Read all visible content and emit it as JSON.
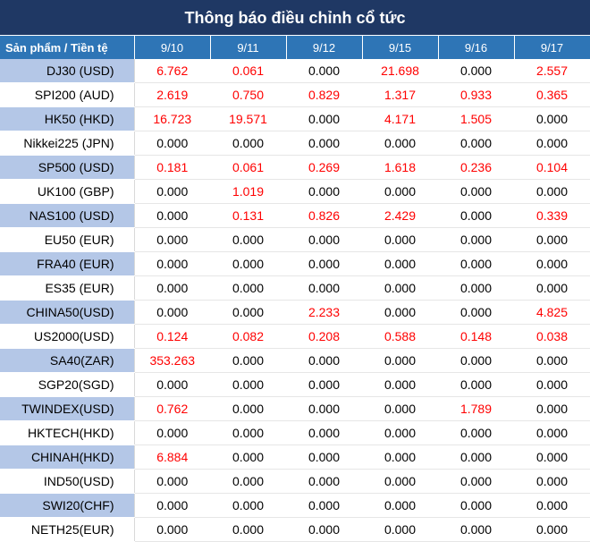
{
  "title": "Thông báo điều chỉnh cổ tức",
  "header": {
    "product_label": "Sản phẩm / Tiền tệ",
    "dates": [
      "9/10",
      "9/11",
      "9/12",
      "9/15",
      "9/16",
      "9/17"
    ]
  },
  "colors": {
    "title_bg": "#1f3864",
    "header_bg": "#2e75b6",
    "stripe": "#b4c7e7",
    "positive": "#ff0000"
  },
  "rows": [
    {
      "product": "DJ30 (USD)",
      "values": [
        "6.762",
        "0.061",
        "0.000",
        "21.698",
        "0.000",
        "2.557"
      ]
    },
    {
      "product": "SPI200 (AUD)",
      "values": [
        "2.619",
        "0.750",
        "0.829",
        "1.317",
        "0.933",
        "0.365"
      ]
    },
    {
      "product": "HK50 (HKD)",
      "values": [
        "16.723",
        "19.571",
        "0.000",
        "4.171",
        "1.505",
        "0.000"
      ]
    },
    {
      "product": "Nikkei225 (JPN)",
      "values": [
        "0.000",
        "0.000",
        "0.000",
        "0.000",
        "0.000",
        "0.000"
      ]
    },
    {
      "product": "SP500 (USD)",
      "values": [
        "0.181",
        "0.061",
        "0.269",
        "1.618",
        "0.236",
        "0.104"
      ]
    },
    {
      "product": "UK100 (GBP)",
      "values": [
        "0.000",
        "1.019",
        "0.000",
        "0.000",
        "0.000",
        "0.000"
      ]
    },
    {
      "product": "NAS100 (USD)",
      "values": [
        "0.000",
        "0.131",
        "0.826",
        "2.429",
        "0.000",
        "0.339"
      ]
    },
    {
      "product": "EU50 (EUR)",
      "values": [
        "0.000",
        "0.000",
        "0.000",
        "0.000",
        "0.000",
        "0.000"
      ]
    },
    {
      "product": "FRA40 (EUR)",
      "values": [
        "0.000",
        "0.000",
        "0.000",
        "0.000",
        "0.000",
        "0.000"
      ]
    },
    {
      "product": "ES35 (EUR)",
      "values": [
        "0.000",
        "0.000",
        "0.000",
        "0.000",
        "0.000",
        "0.000"
      ]
    },
    {
      "product": "CHINA50(USD)",
      "values": [
        "0.000",
        "0.000",
        "2.233",
        "0.000",
        "0.000",
        "4.825"
      ]
    },
    {
      "product": "US2000(USD)",
      "values": [
        "0.124",
        "0.082",
        "0.208",
        "0.588",
        "0.148",
        "0.038"
      ]
    },
    {
      "product": "SA40(ZAR)",
      "values": [
        "353.263",
        "0.000",
        "0.000",
        "0.000",
        "0.000",
        "0.000"
      ]
    },
    {
      "product": "SGP20(SGD)",
      "values": [
        "0.000",
        "0.000",
        "0.000",
        "0.000",
        "0.000",
        "0.000"
      ]
    },
    {
      "product": "TWINDEX(USD)",
      "values": [
        "0.762",
        "0.000",
        "0.000",
        "0.000",
        "1.789",
        "0.000"
      ]
    },
    {
      "product": "HKTECH(HKD)",
      "values": [
        "0.000",
        "0.000",
        "0.000",
        "0.000",
        "0.000",
        "0.000"
      ]
    },
    {
      "product": "CHINAH(HKD)",
      "values": [
        "6.884",
        "0.000",
        "0.000",
        "0.000",
        "0.000",
        "0.000"
      ]
    },
    {
      "product": "IND50(USD)",
      "values": [
        "0.000",
        "0.000",
        "0.000",
        "0.000",
        "0.000",
        "0.000"
      ]
    },
    {
      "product": "SWI20(CHF)",
      "values": [
        "0.000",
        "0.000",
        "0.000",
        "0.000",
        "0.000",
        "0.000"
      ]
    },
    {
      "product": "NETH25(EUR)",
      "values": [
        "0.000",
        "0.000",
        "0.000",
        "0.000",
        "0.000",
        "0.000"
      ]
    }
  ]
}
